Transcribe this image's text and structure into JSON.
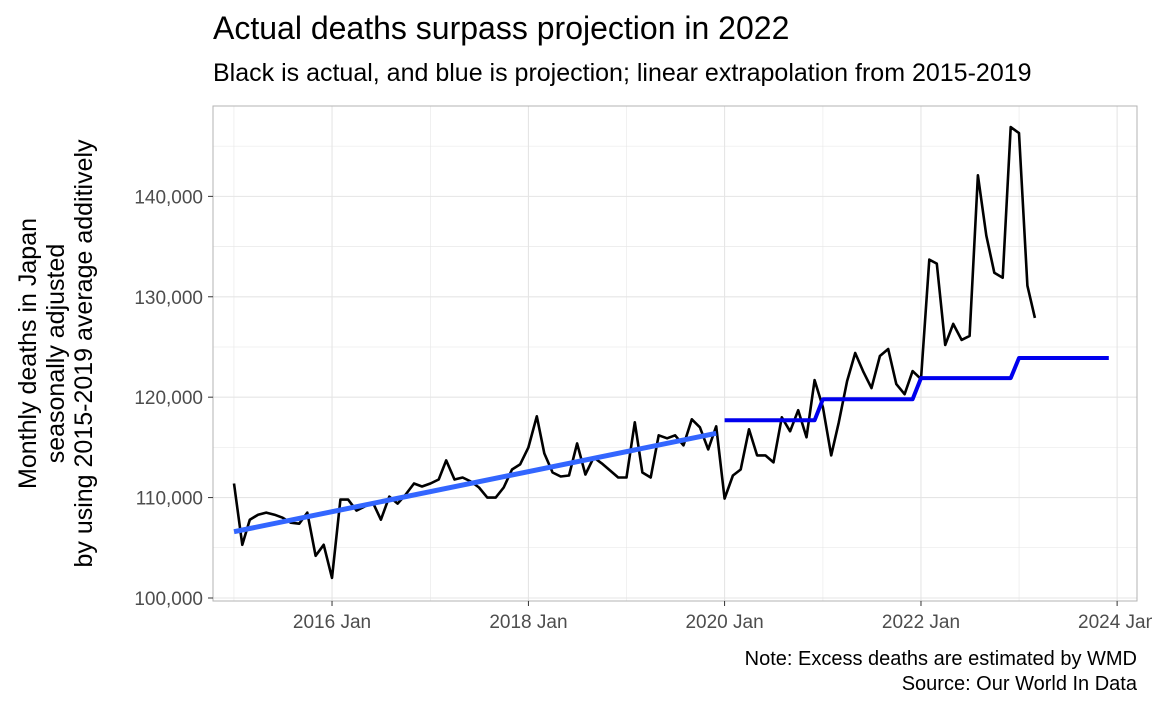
{
  "title": "Actual deaths surpass projection in 2022",
  "subtitle": "Black is actual, and blue is projection; linear extrapolation from 2015-2019",
  "note_line1": "Note: Excess deaths are estimated by WMD",
  "note_line2": "Source: Our World In Data",
  "chart_data": {
    "type": "line",
    "title": "Actual deaths surpass projection in 2022",
    "subtitle": "Black is actual, and blue is projection; linear extrapolation from 2015-2019",
    "xlabel": "",
    "ylabel": [
      "Monthly deaths in Japan",
      "seasonally adjusted",
      "by using 2015-2019 average additively"
    ],
    "y_ticks": [
      100000,
      110000,
      120000,
      130000,
      140000
    ],
    "y_tick_labels": [
      "100,000",
      "110,000",
      "120,000",
      "130,000",
      "140,000"
    ],
    "x_ticks": [
      "2016-01",
      "2018-01",
      "2020-01",
      "2022-01",
      "2024-01"
    ],
    "x_tick_labels": [
      "2016 Jan",
      "2018 Jan",
      "2020 Jan",
      "2022 Jan",
      "2024 Jan"
    ],
    "xlim": [
      "2014-10-15",
      "2024-03-15"
    ],
    "ylim": [
      99700,
      149000
    ],
    "grid": true,
    "legend": "none",
    "colors": {
      "actual": "#000000",
      "fit": "#3366ff",
      "projection": "#0000ee",
      "grid": "#e5e5e5",
      "frame": "#b3b3b3"
    },
    "series": [
      {
        "role": "actual",
        "x": [
          "2015-01",
          "2015-02",
          "2015-03",
          "2015-04",
          "2015-05",
          "2015-06",
          "2015-07",
          "2015-08",
          "2015-09",
          "2015-10",
          "2015-11",
          "2015-12",
          "2016-01",
          "2016-02",
          "2016-03",
          "2016-04",
          "2016-05",
          "2016-06",
          "2016-07",
          "2016-08",
          "2016-09",
          "2016-10",
          "2016-11",
          "2016-12",
          "2017-01",
          "2017-02",
          "2017-03",
          "2017-04",
          "2017-05",
          "2017-06",
          "2017-07",
          "2017-08",
          "2017-09",
          "2017-10",
          "2017-11",
          "2017-12",
          "2018-01",
          "2018-02",
          "2018-03",
          "2018-04",
          "2018-05",
          "2018-06",
          "2018-07",
          "2018-08",
          "2018-09",
          "2018-10",
          "2018-11",
          "2018-12",
          "2019-01",
          "2019-02",
          "2019-03",
          "2019-04",
          "2019-05",
          "2019-06",
          "2019-07",
          "2019-08",
          "2019-09",
          "2019-10",
          "2019-11",
          "2019-12",
          "2020-01",
          "2020-02",
          "2020-03",
          "2020-04",
          "2020-05",
          "2020-06",
          "2020-07",
          "2020-08",
          "2020-09",
          "2020-10",
          "2020-11",
          "2020-12",
          "2021-01",
          "2021-02",
          "2021-03",
          "2021-04",
          "2021-05",
          "2021-06",
          "2021-07",
          "2021-08",
          "2021-09",
          "2021-10",
          "2021-11",
          "2021-12",
          "2022-01",
          "2022-02",
          "2022-03",
          "2022-04",
          "2022-05",
          "2022-06",
          "2022-07",
          "2022-08",
          "2022-09",
          "2022-10",
          "2022-11",
          "2022-12",
          "2023-01",
          "2023-02",
          "2023-03"
        ],
        "values": [
          111400,
          105300,
          107800,
          108300,
          108500,
          108300,
          108000,
          107500,
          107400,
          108500,
          104200,
          105300,
          102000,
          109800,
          109800,
          108700,
          109100,
          109500,
          107800,
          110100,
          109400,
          110300,
          111400,
          111100,
          111400,
          111800,
          113700,
          111800,
          112000,
          111600,
          111000,
          110000,
          110000,
          111000,
          112800,
          113300,
          115000,
          118100,
          114400,
          112500,
          112100,
          112200,
          115400,
          112300,
          114000,
          113400,
          112700,
          112000,
          112000,
          117500,
          112500,
          112000,
          116200,
          115900,
          116200,
          115200,
          117800,
          117000,
          114800,
          117100,
          109900,
          112200,
          112800,
          116800,
          114200,
          114200,
          113500,
          118000,
          116600,
          118700,
          116000,
          121700,
          119000,
          114200,
          117500,
          121600,
          124400,
          122500,
          120900,
          124100,
          124800,
          121300,
          120300,
          122600,
          121800,
          133700,
          133300,
          125200,
          127300,
          125700,
          126100,
          142100,
          136100,
          132400,
          131900,
          146900,
          146300,
          131100,
          127900
        ]
      },
      {
        "role": "linear-fit",
        "x": [
          "2015-01",
          "2019-12"
        ],
        "values": [
          106600,
          116400
        ]
      },
      {
        "role": "projection",
        "x": [
          "2020-01",
          "2020-12",
          "2021-01",
          "2021-12",
          "2022-01",
          "2022-12",
          "2023-01",
          "2023-12"
        ],
        "values": [
          117700,
          117700,
          119800,
          119800,
          121900,
          121900,
          123900,
          123900
        ]
      }
    ]
  }
}
